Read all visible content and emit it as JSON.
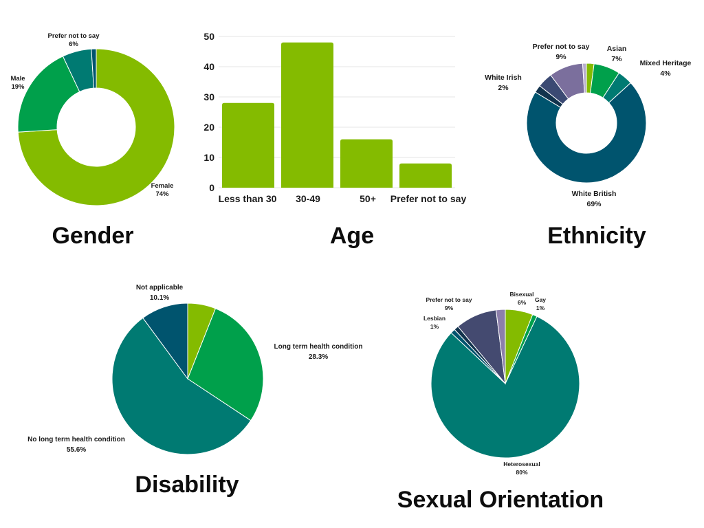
{
  "chart_data": [
    {
      "id": "gender",
      "type": "pie",
      "donut": true,
      "title": "Gender",
      "slices": [
        {
          "label": "Female",
          "pct_label": "74%",
          "value": 74,
          "color": "#84bb00"
        },
        {
          "label": "Male",
          "pct_label": "19%",
          "value": 19,
          "color": "#00a04b"
        },
        {
          "label": "Prefer not to say",
          "pct_label": "6%",
          "value": 6,
          "color": "#007a72"
        },
        {
          "label": "",
          "pct_label": "",
          "value": 1,
          "color": "#00546e"
        }
      ]
    },
    {
      "id": "age",
      "type": "bar",
      "title": "Age",
      "categories": [
        "Less than 30",
        "30-49",
        "50+",
        "Prefer not to say"
      ],
      "values": [
        28,
        48,
        16,
        8
      ],
      "ylim": [
        0,
        50
      ],
      "yticks": [
        0,
        10,
        20,
        30,
        40,
        50
      ],
      "color": "#84bb00",
      "grid": true
    },
    {
      "id": "ethnicity",
      "type": "pie",
      "donut": true,
      "title": "Ethnicity",
      "slices": [
        {
          "label": "",
          "pct_label": "",
          "value": 2,
          "color": "#84bb00"
        },
        {
          "label": "Asian",
          "pct_label": "7%",
          "value": 7,
          "color": "#00a04b"
        },
        {
          "label": "Mixed Heritage",
          "pct_label": "4%",
          "value": 4,
          "color": "#007a72"
        },
        {
          "label": "White British",
          "pct_label": "69%",
          "value": 69,
          "color": "#00546e"
        },
        {
          "label": "White Irish",
          "pct_label": "2%",
          "value": 2,
          "color": "#12334d"
        },
        {
          "label": "",
          "pct_label": "",
          "value": 4,
          "color": "#3b4a73"
        },
        {
          "label": "Prefer not to say",
          "pct_label": "9%",
          "value": 9,
          "color": "#7b6f9d"
        },
        {
          "label": "",
          "pct_label": "",
          "value": 1,
          "color": "#b8aecd"
        }
      ]
    },
    {
      "id": "disability",
      "type": "pie",
      "donut": false,
      "title": "Disability",
      "slices": [
        {
          "label": "",
          "pct_label": "",
          "value": 6,
          "color": "#84bb00"
        },
        {
          "label": "Long term health condition",
          "pct_label": "28.3%",
          "value": 28.3,
          "color": "#00a04b"
        },
        {
          "label": "No long term health condition",
          "pct_label": "55.6%",
          "value": 55.6,
          "color": "#007a72"
        },
        {
          "label": "Not applicable",
          "pct_label": "10.1%",
          "value": 10.1,
          "color": "#00546e"
        }
      ]
    },
    {
      "id": "sexual_orientation",
      "type": "pie",
      "donut": false,
      "title": "Sexual Orientation",
      "slices": [
        {
          "label": "Bisexual",
          "pct_label": "6%",
          "value": 6,
          "color": "#84bb00"
        },
        {
          "label": "Gay",
          "pct_label": "1%",
          "value": 1,
          "color": "#00a04b"
        },
        {
          "label": "Heterosexual",
          "pct_label": "80%",
          "value": 80,
          "color": "#007a72"
        },
        {
          "label": "",
          "pct_label": "",
          "value": 1,
          "color": "#00546e"
        },
        {
          "label": "Lesbian",
          "pct_label": "1%",
          "value": 1,
          "color": "#12334d"
        },
        {
          "label": "Prefer not to say",
          "pct_label": "9%",
          "value": 9,
          "color": "#444a70"
        },
        {
          "label": "",
          "pct_label": "",
          "value": 2,
          "color": "#8c7fab"
        }
      ]
    }
  ]
}
